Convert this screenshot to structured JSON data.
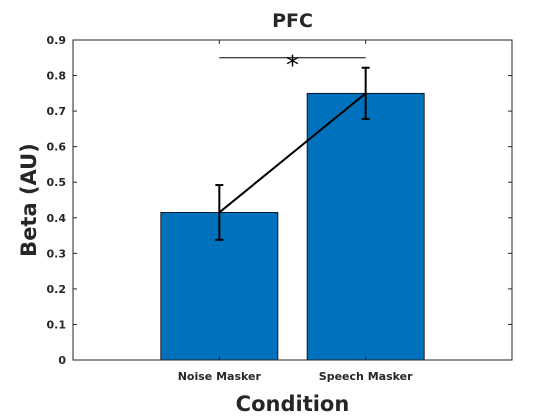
{
  "chart_data": {
    "type": "bar",
    "title": "PFC",
    "xlabel": "Condition",
    "ylabel": "Beta (AU)",
    "categories": [
      "Noise Masker",
      "Speech Masker"
    ],
    "values": [
      0.415,
      0.75
    ],
    "error": [
      0.077,
      0.072
    ],
    "ylim": [
      0,
      0.9
    ],
    "yticks": [
      "0",
      "0.1",
      "0.2",
      "0.3",
      "0.4",
      "0.5",
      "0.6",
      "0.7",
      "0.8",
      "0.9"
    ],
    "connecting_line": true,
    "significance": {
      "label": "*",
      "between": [
        "Noise Masker",
        "Speech Masker"
      ],
      "y": 0.85
    },
    "bar_color": "#0072BD",
    "grid": false
  }
}
